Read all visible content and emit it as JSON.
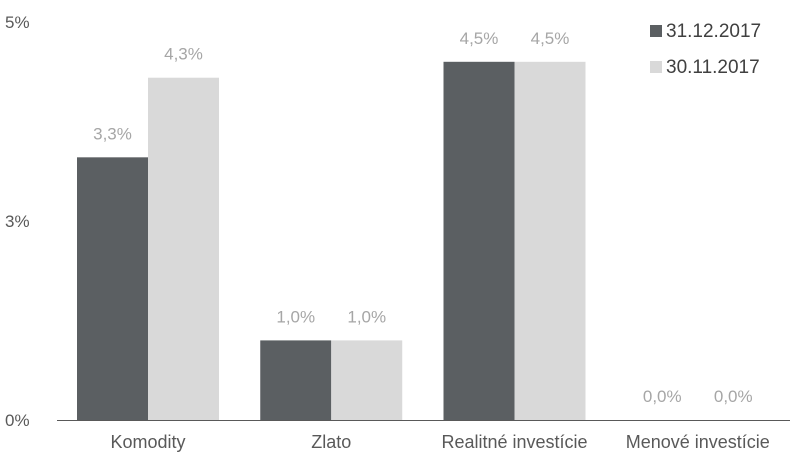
{
  "chart_data": {
    "type": "bar",
    "categories": [
      "Komodity",
      "Zlato",
      "Realitné investície",
      "Menové investície"
    ],
    "series": [
      {
        "name": "31.12.2017",
        "values": [
          3.3,
          1.0,
          4.5,
          0.0
        ],
        "labels": [
          "3,3%",
          "1,0%",
          "4,5%",
          "0,0%"
        ],
        "color": "#5b5f62"
      },
      {
        "name": "30.11.2017",
        "values": [
          4.3,
          1.0,
          4.5,
          0.0
        ],
        "labels": [
          "4,3%",
          "1,0%",
          "4,5%",
          "0,0%"
        ],
        "color": "#d9d9d9"
      }
    ],
    "y_ticks": [
      {
        "value": 0,
        "label": "0%"
      },
      {
        "value": 2.5,
        "label": "3%"
      },
      {
        "value": 5,
        "label": "5%"
      }
    ],
    "ylim": [
      0,
      5
    ],
    "grid": false,
    "legend_position": "top-right",
    "title": "",
    "xlabel": "",
    "ylabel": ""
  }
}
